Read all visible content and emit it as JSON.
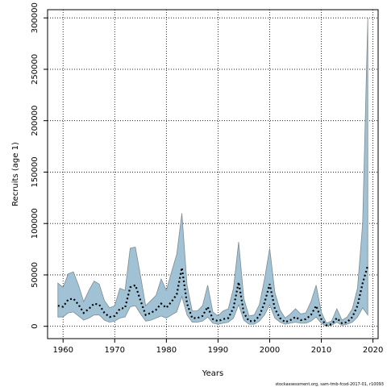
{
  "chart_data": {
    "type": "area",
    "xlabel": "Years",
    "ylabel": "Recruits (age 1)",
    "xlim": [
      1957,
      2021
    ],
    "ylim": [
      -12000,
      308000
    ],
    "x_ticks": [
      1960,
      1970,
      1980,
      1990,
      2000,
      2010,
      2020
    ],
    "y_ticks": [
      0,
      50000,
      100000,
      150000,
      200000,
      250000,
      300000
    ],
    "grid": true,
    "band_color": "#a0c2d4",
    "band_edge_color": "#7f8c93",
    "line_color": "#000000",
    "x": [
      1959,
      1960,
      1961,
      1962,
      1963,
      1964,
      1965,
      1966,
      1967,
      1968,
      1969,
      1970,
      1971,
      1972,
      1973,
      1974,
      1975,
      1976,
      1977,
      1978,
      1979,
      1980,
      1981,
      1982,
      1983,
      1984,
      1985,
      1986,
      1987,
      1988,
      1989,
      1990,
      1991,
      1992,
      1993,
      1994,
      1995,
      1996,
      1997,
      1998,
      1999,
      2000,
      2001,
      2002,
      2003,
      2004,
      2005,
      2006,
      2007,
      2008,
      2009,
      2010,
      2011,
      2012,
      2013,
      2014,
      2015,
      2016,
      2017,
      2018,
      2019
    ],
    "series": [
      {
        "role": "estimate",
        "values": [
          20000,
          19000,
          26000,
          27000,
          21000,
          13000,
          17000,
          22000,
          21000,
          13000,
          9000,
          10000,
          17000,
          18000,
          38000,
          40000,
          25000,
          11000,
          13000,
          16000,
          22000,
          18000,
          24000,
          31000,
          57000,
          22000,
          8000,
          8000,
          10000,
          19000,
          7000,
          5000,
          7000,
          8000,
          18000,
          43000,
          13000,
          5000,
          5000,
          10000,
          23000,
          41000,
          17000,
          8000,
          4000,
          6000,
          9000,
          6000,
          7000,
          11000,
          20000,
          7000,
          1000,
          2000,
          8000,
          3000,
          4000,
          9000,
          20000,
          42000,
          59000
        ]
      },
      {
        "role": "upper",
        "values": [
          42000,
          38000,
          51000,
          53000,
          40000,
          24000,
          35000,
          44000,
          41000,
          25000,
          18000,
          20000,
          37000,
          35000,
          76000,
          77000,
          49000,
          20000,
          25000,
          30000,
          46000,
          35000,
          53000,
          70000,
          110000,
          40000,
          15000,
          15000,
          20000,
          40000,
          14000,
          10000,
          15000,
          17000,
          37000,
          82000,
          27000,
          10000,
          11000,
          21000,
          46000,
          76000,
          33000,
          16000,
          8000,
          12000,
          17000,
          12000,
          13000,
          24000,
          40000,
          14000,
          3000,
          5000,
          17000,
          6000,
          9000,
          17000,
          37000,
          100000,
          300000
        ]
      },
      {
        "role": "lower",
        "values": [
          9000,
          9000,
          13000,
          14000,
          10000,
          6000,
          8000,
          11000,
          11000,
          6000,
          4000,
          5000,
          8000,
          9000,
          19000,
          20000,
          12000,
          5000,
          6000,
          8000,
          10000,
          8000,
          11000,
          14000,
          29000,
          11000,
          4000,
          4000,
          5000,
          9000,
          3000,
          2000,
          3000,
          4000,
          8000,
          21000,
          6000,
          2000,
          2000,
          5000,
          11000,
          21000,
          8000,
          4000,
          2000,
          3000,
          4000,
          3000,
          3000,
          5000,
          9000,
          3000,
          0,
          1000,
          4000,
          1000,
          2000,
          4000,
          9000,
          18000,
          11000
        ]
      }
    ]
  },
  "footer": "stockassessment.org, sam-tmb-fcod-2017-01, r10093"
}
